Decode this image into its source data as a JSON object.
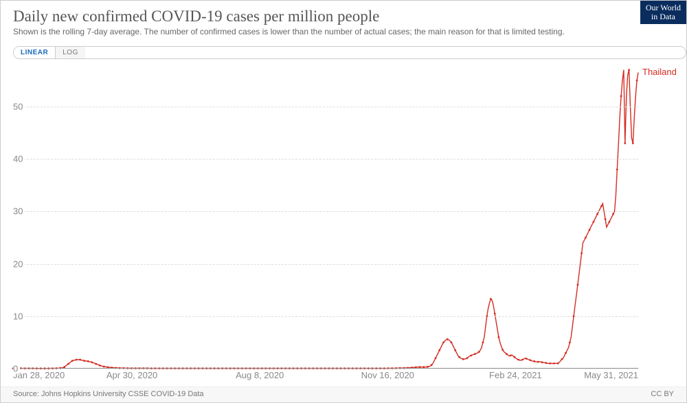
{
  "header": {
    "title": "Daily new confirmed COVID-19 cases per million people",
    "subtitle": "Shown is the rolling 7-day average. The number of confirmed cases is lower than the number of actual cases; the main reason for that is limited testing.",
    "logo_line1": "Our World",
    "logo_line2": "in Data",
    "logo_bg": "#0a2d5e"
  },
  "toggle": {
    "linear": "LINEAR",
    "log": "LOG",
    "active": "linear"
  },
  "chart": {
    "type": "line",
    "series_name": "Thailand",
    "series_color": "#d42b21",
    "marker_color": "#d42b21",
    "marker_radius": 1.4,
    "line_width": 1.4,
    "grid_color": "#dddddd",
    "axis_color": "#888888",
    "background_color": "#ffffff",
    "ylim": [
      0,
      58
    ],
    "y_ticks": [
      0,
      10,
      20,
      30,
      40,
      50
    ],
    "x_range_days": [
      0,
      489
    ],
    "x_ticks": [
      {
        "day": 0,
        "label": "Jan 28, 2020"
      },
      {
        "day": 93,
        "label": "Apr 30, 2020"
      },
      {
        "day": 193,
        "label": "Aug 8, 2020"
      },
      {
        "day": 293,
        "label": "Nov 16, 2020"
      },
      {
        "day": 393,
        "label": "Feb 24, 2021"
      },
      {
        "day": 489,
        "label": "May 31, 2021"
      }
    ],
    "values": [
      0.05,
      0.05,
      0.05,
      0.06,
      0.06,
      0.06,
      0.06,
      0.05,
      0.05,
      0.05,
      0.05,
      0.05,
      0.05,
      0.05,
      0.05,
      0.05,
      0.05,
      0.04,
      0.04,
      0.04,
      0.04,
      0.04,
      0.04,
      0.04,
      0.04,
      0.04,
      0.04,
      0.04,
      0.05,
      0.05,
      0.05,
      0.05,
      0.06,
      0.07,
      0.08,
      0.1,
      0.12,
      0.15,
      0.2,
      0.3,
      0.5,
      0.7,
      0.9,
      1.1,
      1.3,
      1.5,
      1.6,
      1.6,
      1.7,
      1.7,
      1.7,
      1.7,
      1.6,
      1.6,
      1.5,
      1.5,
      1.4,
      1.4,
      1.3,
      1.3,
      1.2,
      1.1,
      1.0,
      0.9,
      0.8,
      0.7,
      0.6,
      0.5,
      0.45,
      0.4,
      0.35,
      0.3,
      0.28,
      0.25,
      0.22,
      0.2,
      0.18,
      0.16,
      0.14,
      0.13,
      0.12,
      0.11,
      0.1,
      0.1,
      0.09,
      0.09,
      0.08,
      0.08,
      0.08,
      0.07,
      0.07,
      0.07,
      0.07,
      0.07,
      0.07,
      0.06,
      0.06,
      0.06,
      0.06,
      0.06,
      0.06,
      0.06,
      0.06,
      0.06,
      0.05,
      0.05,
      0.05,
      0.05,
      0.05,
      0.05,
      0.05,
      0.05,
      0.05,
      0.05,
      0.05,
      0.05,
      0.05,
      0.05,
      0.05,
      0.05,
      0.05,
      0.05,
      0.05,
      0.05,
      0.05,
      0.05,
      0.05,
      0.05,
      0.05,
      0.05,
      0.05,
      0.05,
      0.05,
      0.05,
      0.05,
      0.05,
      0.05,
      0.05,
      0.05,
      0.05,
      0.05,
      0.05,
      0.05,
      0.05,
      0.05,
      0.05,
      0.05,
      0.05,
      0.05,
      0.05,
      0.05,
      0.05,
      0.05,
      0.05,
      0.05,
      0.05,
      0.05,
      0.05,
      0.05,
      0.05,
      0.05,
      0.05,
      0.05,
      0.05,
      0.05,
      0.05,
      0.05,
      0.05,
      0.05,
      0.05,
      0.05,
      0.05,
      0.05,
      0.05,
      0.05,
      0.05,
      0.05,
      0.05,
      0.05,
      0.05,
      0.05,
      0.05,
      0.05,
      0.05,
      0.05,
      0.05,
      0.05,
      0.05,
      0.05,
      0.05,
      0.05,
      0.05,
      0.05,
      0.05,
      0.05,
      0.05,
      0.05,
      0.05,
      0.05,
      0.05,
      0.05,
      0.05,
      0.05,
      0.05,
      0.05,
      0.05,
      0.05,
      0.05,
      0.05,
      0.05,
      0.05,
      0.05,
      0.05,
      0.05,
      0.05,
      0.05,
      0.05,
      0.05,
      0.05,
      0.05,
      0.05,
      0.05,
      0.05,
      0.05,
      0.05,
      0.05,
      0.05,
      0.05,
      0.05,
      0.05,
      0.05,
      0.05,
      0.05,
      0.05,
      0.05,
      0.05,
      0.05,
      0.05,
      0.05,
      0.05,
      0.05,
      0.05,
      0.05,
      0.05,
      0.05,
      0.05,
      0.05,
      0.05,
      0.05,
      0.05,
      0.05,
      0.05,
      0.05,
      0.05,
      0.05,
      0.05,
      0.05,
      0.05,
      0.05,
      0.05,
      0.05,
      0.05,
      0.05,
      0.05,
      0.05,
      0.05,
      0.05,
      0.05,
      0.05,
      0.05,
      0.05,
      0.05,
      0.05,
      0.05,
      0.05,
      0.05,
      0.05,
      0.05,
      0.05,
      0.05,
      0.05,
      0.05,
      0.05,
      0.05,
      0.05,
      0.06,
      0.06,
      0.06,
      0.07,
      0.07,
      0.08,
      0.08,
      0.09,
      0.1,
      0.1,
      0.1,
      0.11,
      0.12,
      0.13,
      0.14,
      0.15,
      0.16,
      0.18,
      0.2,
      0.22,
      0.24,
      0.26,
      0.28,
      0.3,
      0.3,
      0.3,
      0.3,
      0.3,
      0.3,
      0.3,
      0.35,
      0.4,
      0.5,
      0.7,
      1.0,
      1.5,
      2.0,
      2.5,
      3.0,
      3.5,
      4.0,
      4.5,
      5.0,
      5.3,
      5.5,
      5.6,
      5.5,
      5.3,
      5.0,
      4.5,
      4.0,
      3.5,
      3.0,
      2.5,
      2.2,
      2.0,
      1.9,
      1.8,
      1.8,
      1.9,
      2.0,
      2.2,
      2.4,
      2.5,
      2.6,
      2.7,
      2.8,
      2.9,
      3.0,
      3.2,
      3.5,
      4.0,
      5.0,
      6.0,
      8.0,
      10.0,
      11.5,
      12.5,
      13.3,
      13.0,
      12.0,
      10.5,
      9.0,
      7.5,
      6.0,
      5.0,
      4.2,
      3.6,
      3.2,
      3.0,
      2.8,
      2.6,
      2.4,
      2.5,
      2.6,
      2.4,
      2.2,
      2.0,
      1.8,
      1.7,
      1.6,
      1.6,
      1.7,
      1.8,
      2.0,
      1.9,
      1.8,
      1.7,
      1.6,
      1.5,
      1.4,
      1.4,
      1.3,
      1.3,
      1.3,
      1.3,
      1.3,
      1.2,
      1.2,
      1.1,
      1.1,
      1.0,
      1.0,
      1.0,
      1.0,
      1.0,
      1.0,
      1.0,
      1.0,
      1.0,
      1.2,
      1.5,
      1.8,
      2.0,
      2.5,
      3.0,
      3.5,
      4.0,
      5.0,
      6.0,
      8.0,
      10.0,
      12.0,
      14.0,
      16.0,
      18.0,
      20.0,
      22.0,
      24.0,
      24.5,
      25.0,
      25.5,
      26.0,
      26.5,
      27.0,
      27.5,
      28.0,
      28.5,
      29.0,
      29.5,
      30.0,
      30.5,
      31.0,
      31.5,
      30.0,
      28.5,
      27.0,
      27.5,
      28.0,
      28.5,
      29.0,
      29.5,
      30.0,
      33.0,
      38.0,
      43.0,
      48.0,
      52.0,
      55.0,
      57.0,
      43.0,
      52.0,
      56.0,
      57.0,
      50.0,
      44.0,
      43.0,
      48.0,
      52.0,
      55.0,
      56.5
    ]
  },
  "footer": {
    "source": "Source: Johns Hopkins University CSSE COVID-19 Data",
    "license": "CC BY"
  }
}
